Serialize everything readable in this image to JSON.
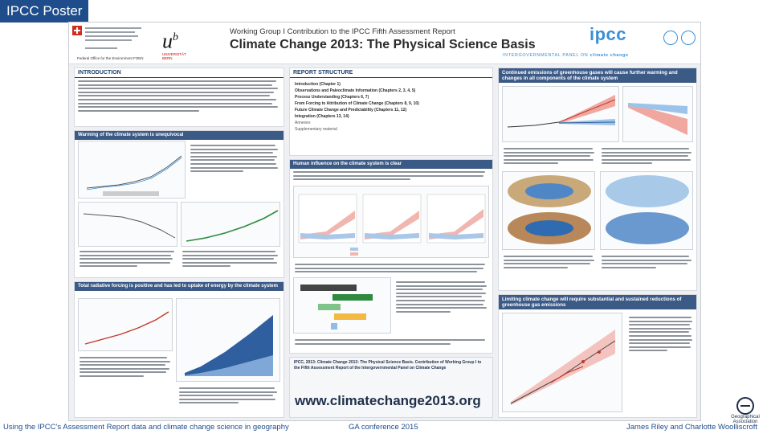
{
  "slide": {
    "title": "IPCC Poster"
  },
  "poster": {
    "header": {
      "swiss_line": "Federal Office for the Environment FOEN",
      "unibe_text": "UNIVERSITÄT BERN",
      "working_group": "Working Group I Contribution to the IPCC Fifth Assessment Report",
      "main_title": "Climate Change 2013: The Physical Science Basis",
      "ipcc_word": "ipcc",
      "ipcc_strip_prefix": "INTERGOVERNMENTAL PANEL ON",
      "ipcc_strip_bold": "climate change",
      "org_left": "WMO",
      "org_right": "UNEP"
    },
    "left_column": {
      "intro_title": "INTRODUCTION",
      "warming_head": "Warming of the climate system is unequivocal",
      "radiative_head": "Total radiative forcing is positive and has led to uptake of energy by the climate system"
    },
    "middle_column": {
      "report_title": "REPORT STRUCTURE",
      "toc": [
        "Introduction (Chapter 1)",
        "Observations and Paleoclimate Information (Chapters 2, 3, 4, 5)",
        "Process Understanding (Chapters 6, 7)",
        "From Forcing to Attribution of Climate Change (Chapters 8, 9, 10)",
        "Future Climate Change and Predictability (Chapters 11, 12)",
        "Integration (Chapters 13, 14)"
      ],
      "toc_light": [
        "Annexes",
        "Supplementary material"
      ],
      "human_head": "Human influence on the climate system is clear",
      "citation": "IPCC, 2013: Climate Change 2013: The Physical Science Basis. Contribution of Working Group I to the Fifth Assessment Report of the Intergovernmental Panel on Climate Change",
      "url": "www.climatechange2013.org"
    },
    "right_column": {
      "continued_head": "Continued emissions of greenhouse gases will cause further warming and changes in all components of the climate system",
      "limiting_head": "Limiting climate change will require substantial and sustained reductions of greenhouse gas emissions"
    }
  },
  "footer": {
    "left": "Using the IPCC’s Assessment Report data and climate change science in geography",
    "center": "GA conference 2015",
    "right": "James Riley and Charlotte Woolliscroft"
  },
  "rgs_logo": {
    "line1": "Geographical",
    "line2": "Association"
  },
  "colors": {
    "title_bar": "#1f4d8c",
    "box_head": "#3c5a86",
    "ipcc_blue": "#3a8fd6"
  }
}
